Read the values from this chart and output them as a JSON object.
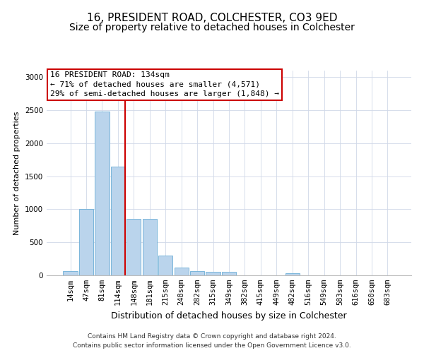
{
  "title_line1": "16, PRESIDENT ROAD, COLCHESTER, CO3 9ED",
  "title_line2": "Size of property relative to detached houses in Colchester",
  "xlabel": "Distribution of detached houses by size in Colchester",
  "ylabel": "Number of detached properties",
  "bar_labels": [
    "14sqm",
    "47sqm",
    "81sqm",
    "114sqm",
    "148sqm",
    "181sqm",
    "215sqm",
    "248sqm",
    "282sqm",
    "315sqm",
    "349sqm",
    "382sqm",
    "415sqm",
    "449sqm",
    "482sqm",
    "516sqm",
    "549sqm",
    "583sqm",
    "616sqm",
    "650sqm",
    "683sqm"
  ],
  "bar_values": [
    60,
    1000,
    2480,
    1650,
    850,
    850,
    300,
    120,
    60,
    50,
    50,
    0,
    0,
    0,
    30,
    0,
    0,
    0,
    0,
    0,
    0
  ],
  "bar_color": "#bad4ec",
  "bar_edge_color": "#6baed6",
  "vline_x_index": 3,
  "vline_color": "#cc0000",
  "annotation_box_text": "16 PRESIDENT ROAD: 134sqm\n← 71% of detached houses are smaller (4,571)\n29% of semi-detached houses are larger (1,848) →",
  "ylim": [
    0,
    3100
  ],
  "yticks": [
    0,
    500,
    1000,
    1500,
    2000,
    2500,
    3000
  ],
  "grid_color": "#d0d8e8",
  "background_color": "#ffffff",
  "footer_line1": "Contains HM Land Registry data © Crown copyright and database right 2024.",
  "footer_line2": "Contains public sector information licensed under the Open Government Licence v3.0.",
  "title_fontsize": 11,
  "subtitle_fontsize": 10,
  "ylabel_fontsize": 8,
  "xlabel_fontsize": 9,
  "tick_fontsize": 7.5,
  "annotation_fontsize": 8,
  "footer_fontsize": 6.5
}
